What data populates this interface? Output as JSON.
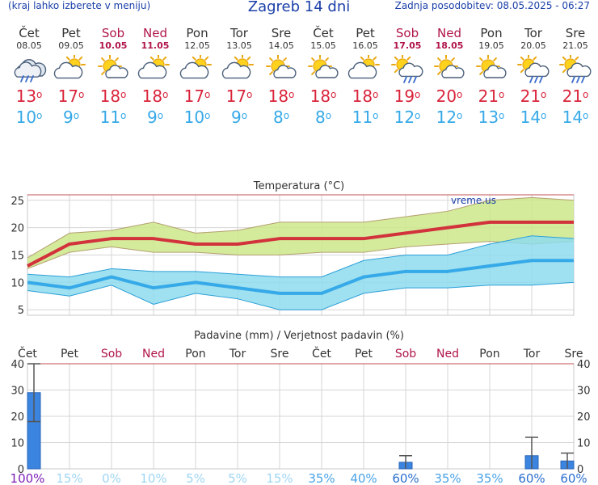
{
  "header": {
    "left_note": "(kraj lahko izberete v meniju)",
    "title": "Zagreb 14 dni",
    "updated": "Zadnja posodobitev: 08.05.2025 - 06:27"
  },
  "days": [
    {
      "name": "Čet",
      "date": "08.05",
      "weekend": false,
      "icon": "rain-cloud-icon",
      "tmax": "13",
      "tmin": "10"
    },
    {
      "name": "Pet",
      "date": "09.05",
      "weekend": false,
      "icon": "partly-cloudy-icon",
      "tmax": "17",
      "tmin": "9"
    },
    {
      "name": "Sob",
      "date": "10.05",
      "weekend": true,
      "icon": "sun-cloud-icon",
      "tmax": "18",
      "tmin": "11"
    },
    {
      "name": "Ned",
      "date": "11.05",
      "weekend": true,
      "icon": "partly-cloudy-icon",
      "tmax": "18",
      "tmin": "9"
    },
    {
      "name": "Pon",
      "date": "12.05",
      "weekend": false,
      "icon": "partly-cloudy-icon",
      "tmax": "17",
      "tmin": "10"
    },
    {
      "name": "Tor",
      "date": "13.05",
      "weekend": false,
      "icon": "partly-cloudy-icon",
      "tmax": "17",
      "tmin": "9"
    },
    {
      "name": "Sre",
      "date": "14.05",
      "weekend": false,
      "icon": "sun-cloud-icon",
      "tmax": "18",
      "tmin": "8"
    },
    {
      "name": "Čet",
      "date": "15.05",
      "weekend": false,
      "icon": "sun-cloud-icon",
      "tmax": "18",
      "tmin": "8"
    },
    {
      "name": "Pet",
      "date": "16.05",
      "weekend": false,
      "icon": "partly-cloudy-icon",
      "tmax": "18",
      "tmin": "11"
    },
    {
      "name": "Sob",
      "date": "17.05",
      "weekend": true,
      "icon": "sun-rain-icon",
      "tmax": "19",
      "tmin": "12"
    },
    {
      "name": "Ned",
      "date": "18.05",
      "weekend": true,
      "icon": "sun-cloud-icon",
      "tmax": "20",
      "tmin": "12"
    },
    {
      "name": "Pon",
      "date": "19.05",
      "weekend": false,
      "icon": "sun-cloud-icon",
      "tmax": "21",
      "tmin": "13"
    },
    {
      "name": "Tor",
      "date": "20.05",
      "weekend": false,
      "icon": "sun-rain-icon",
      "tmax": "21",
      "tmin": "14"
    },
    {
      "name": "Sre",
      "date": "21.05",
      "weekend": false,
      "icon": "sun-rain-icon",
      "tmax": "21",
      "tmin": "14"
    }
  ],
  "chart_data": [
    {
      "type": "line",
      "title": "Temperatura (°C)",
      "watermark": "vreme.us",
      "categories": [
        "Čet",
        "Pet",
        "Sob",
        "Ned",
        "Pon",
        "Tor",
        "Sre",
        "Čet",
        "Pet",
        "Sob",
        "Ned",
        "Pon",
        "Tor",
        "Sre"
      ],
      "ylim": [
        4,
        26
      ],
      "yticks": [
        5,
        10,
        15,
        20,
        25
      ],
      "grid": true,
      "series": [
        {
          "role": "max",
          "color": "#d2323c",
          "values": [
            13,
            17,
            18,
            18,
            17,
            17,
            18,
            18,
            18,
            19,
            20,
            21,
            21,
            21
          ]
        },
        {
          "role": "min",
          "color": "#36a9e8",
          "values": [
            10,
            9,
            11,
            9,
            10,
            9,
            8,
            8,
            11,
            12,
            12,
            13,
            14,
            14
          ]
        },
        {
          "role": "max-band",
          "color": "#cbe88a",
          "upper": [
            14.5,
            19,
            19.5,
            21,
            19,
            19.5,
            21,
            21,
            21,
            22,
            23,
            25,
            25.5,
            25
          ],
          "lower": [
            12.5,
            15.5,
            16.5,
            15.5,
            15.5,
            15,
            15,
            15.5,
            15.5,
            16.5,
            17,
            17.5,
            17,
            17.5
          ]
        },
        {
          "role": "min-band",
          "color": "#8edced",
          "upper": [
            11.5,
            11,
            12.5,
            12,
            12,
            11.5,
            11,
            11,
            14,
            15,
            15,
            17,
            18.5,
            18
          ],
          "lower": [
            8.5,
            7.5,
            9.5,
            6,
            8,
            7,
            5,
            5,
            8,
            9,
            9,
            9.5,
            9.5,
            10
          ]
        }
      ]
    },
    {
      "type": "bar",
      "title": "Padavine (mm) / Verjetnost padavin (%)",
      "categories": [
        "Čet",
        "Pet",
        "Sob",
        "Ned",
        "Pon",
        "Tor",
        "Sre",
        "Čet",
        "Pet",
        "Sob",
        "Ned",
        "Pon",
        "Tor",
        "Sre"
      ],
      "ylim": [
        0,
        40
      ],
      "yticks": [
        0,
        10,
        20,
        30,
        40
      ],
      "values": [
        29,
        0,
        0,
        0,
        0,
        0,
        0,
        0,
        0,
        2.5,
        0,
        0,
        5,
        3
      ],
      "range_high": [
        40,
        0,
        0,
        0,
        0,
        0,
        0,
        0,
        0,
        5,
        0,
        0,
        12,
        6
      ],
      "range_low": [
        18,
        0,
        0,
        0,
        0,
        0,
        0,
        0,
        0,
        0,
        0,
        0,
        0,
        0
      ],
      "probability": [
        "100%",
        "15%",
        "0%",
        "10%",
        "5%",
        "5%",
        "15%",
        "35%",
        "40%",
        "60%",
        "35%",
        "35%",
        "60%",
        "60%"
      ],
      "probability_values": [
        100,
        15,
        0,
        10,
        5,
        5,
        15,
        35,
        40,
        60,
        35,
        35,
        60,
        60
      ],
      "bar_color": "#3b84e0"
    }
  ]
}
